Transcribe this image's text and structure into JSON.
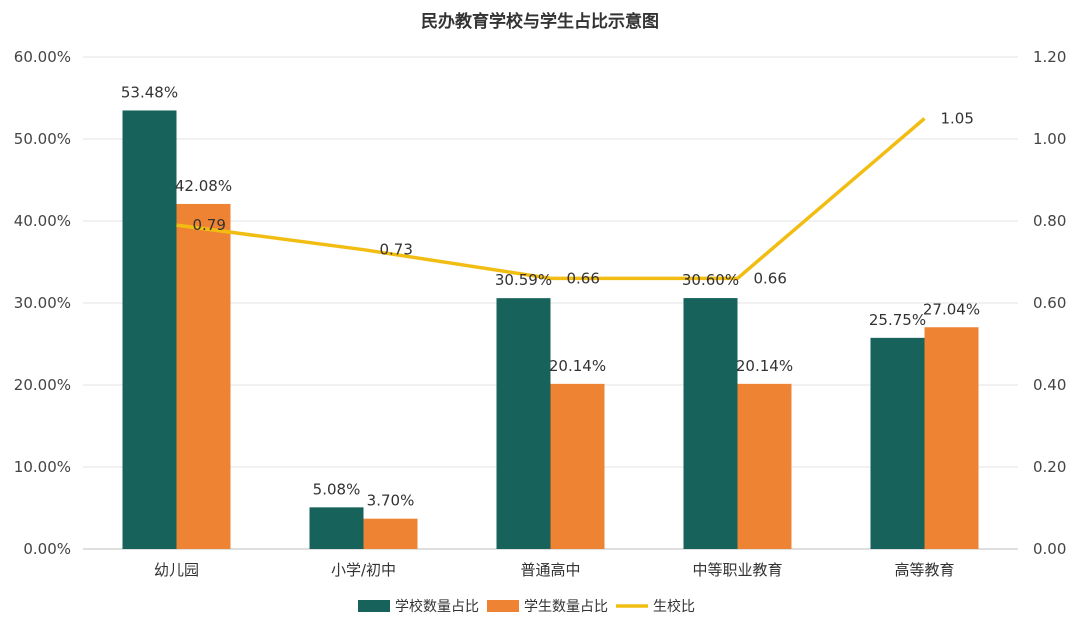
{
  "chart_data": {
    "type": "bar",
    "title": "民办教育学校与学生占比示意图",
    "categories": [
      "幼儿园",
      "小学/初中",
      "普通高中",
      "中等职业教育",
      "高等教育"
    ],
    "series": [
      {
        "name": "学校数量占比",
        "kind": "bar",
        "axis": "left",
        "color": "#17625a",
        "values": [
          53.48,
          5.08,
          30.59,
          30.6,
          25.75
        ],
        "labels": [
          "53.48%",
          "5.08%",
          "30.59%",
          "30.60%",
          "25.75%"
        ]
      },
      {
        "name": "学生数量占比",
        "kind": "bar",
        "axis": "left",
        "color": "#ee8433",
        "values": [
          42.08,
          3.7,
          20.14,
          20.14,
          27.04
        ],
        "labels": [
          "42.08%",
          "3.70%",
          "20.14%",
          "20.14%",
          "27.04%"
        ]
      },
      {
        "name": "生校比",
        "kind": "line",
        "axis": "right",
        "color": "#f2bd12",
        "values": [
          0.79,
          0.73,
          0.66,
          0.66,
          1.05
        ],
        "labels": [
          "0.79",
          "0.73",
          "0.66",
          "0.66",
          "1.05"
        ]
      }
    ],
    "y_left": {
      "ylim": [
        0,
        60
      ],
      "ticks": [
        0,
        10,
        20,
        30,
        40,
        50,
        60
      ],
      "tick_labels": [
        "0.00%",
        "10.00%",
        "20.00%",
        "30.00%",
        "40.00%",
        "50.00%",
        "60.00%"
      ]
    },
    "y_right": {
      "ylim": [
        0,
        1.2
      ],
      "ticks": [
        0,
        0.2,
        0.4,
        0.6,
        0.8,
        1.0,
        1.2
      ],
      "tick_labels": [
        "0.00",
        "0.20",
        "0.40",
        "0.60",
        "0.80",
        "1.00",
        "1.20"
      ]
    },
    "grid": true,
    "legend": "bottom-center"
  }
}
